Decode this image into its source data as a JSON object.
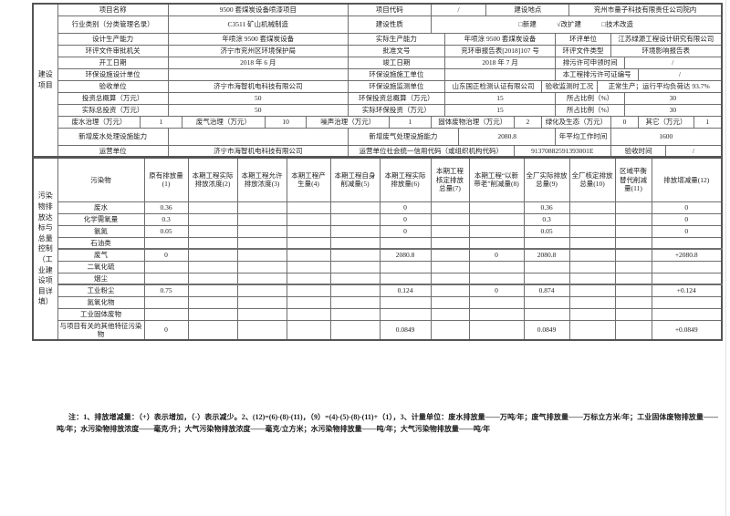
{
  "title": "附件1、建设项目工程竣工环境保护“三同时”验收登记表",
  "subheader": {
    "unit_label": "填表单位（盖章）：济宁市海智机电科技有限公司",
    "person_label": "填表人（签字）：",
    "agent_label": "项目经办人（签字）："
  },
  "side_labels": {
    "top": "建设项目",
    "bottom": "污染物排放达标与总量控制（工业建设项目详填）"
  },
  "info_table": {
    "rows": [
      {
        "h": 13,
        "cells": [
          {
            "t": "项目名称",
            "s": 8,
            "k": "label"
          },
          {
            "t": "9500 套煤炭设备喷漆项目",
            "s": 13,
            "k": "value"
          },
          {
            "t": "项目代码",
            "s": 6,
            "k": "label"
          },
          {
            "t": "/",
            "s": 4,
            "k": "value"
          },
          {
            "t": "建设地点",
            "s": 6,
            "k": "label"
          },
          {
            "t": "兖州市量子科技有限责任公司院内",
            "s": 11,
            "k": "value"
          }
        ]
      },
      {
        "h": 19,
        "cells": [
          {
            "t": "行业类别（分类管理名录）",
            "s": 8,
            "k": "label"
          },
          {
            "t": "C3511 矿山机械制造",
            "s": 13,
            "k": "value"
          },
          {
            "t": "建设性质",
            "s": 6,
            "k": "label"
          },
          {
            "t": "□新建　　　√改扩建　　　□技术改造",
            "s": 21,
            "k": "value"
          }
        ]
      },
      {
        "h": 13,
        "cells": [
          {
            "t": "设计生产能力",
            "s": 8,
            "k": "label"
          },
          {
            "t": "年喷涂 9500 套煤炭设备",
            "s": 13,
            "k": "value"
          },
          {
            "t": "实际生产能力",
            "s": 7,
            "k": "label"
          },
          {
            "t": "年喷涂 9500 套煤炭设备",
            "s": 8,
            "k": "value"
          },
          {
            "t": "环评单位",
            "s": 4,
            "k": "label"
          },
          {
            "t": "江苏绿源工程设计研究有限公司",
            "s": 8,
            "k": "value"
          }
        ]
      },
      {
        "h": 13,
        "cells": [
          {
            "t": "环评文件审批机关",
            "s": 8,
            "k": "label"
          },
          {
            "t": "济宁市兖州区环境保护局",
            "s": 13,
            "k": "value"
          },
          {
            "t": "批准文号",
            "s": 7,
            "k": "label"
          },
          {
            "t": "兖环审报告表[2018]107 号",
            "s": 8,
            "k": "value"
          },
          {
            "t": "环评文件类型",
            "s": 4,
            "k": "label"
          },
          {
            "t": "环境影响报告表",
            "s": 8,
            "k": "value"
          }
        ]
      },
      {
        "h": 13,
        "cells": [
          {
            "t": "开工日期",
            "s": 8,
            "k": "label"
          },
          {
            "t": "2018 年 6 月",
            "s": 13,
            "k": "value"
          },
          {
            "t": "竣工日期",
            "s": 7,
            "k": "label"
          },
          {
            "t": "2018 年 7 月",
            "s": 8,
            "k": "value"
          },
          {
            "t": "排污许可申领时间",
            "s": 5,
            "k": "label"
          },
          {
            "t": "/",
            "s": 7,
            "k": "value"
          }
        ]
      },
      {
        "h": 13,
        "cells": [
          {
            "t": "环保设施设计单位",
            "s": 8,
            "k": "label"
          },
          {
            "t": "",
            "s": 13,
            "k": "value"
          },
          {
            "t": "环保设施施工单位",
            "s": 7,
            "k": "label"
          },
          {
            "t": "",
            "s": 8,
            "k": "value"
          },
          {
            "t": "本工程排污许可证编号",
            "s": 6,
            "k": "label"
          },
          {
            "t": "/",
            "s": 6,
            "k": "value"
          }
        ]
      },
      {
        "h": 13,
        "cells": [
          {
            "t": "验收单位",
            "s": 8,
            "k": "label"
          },
          {
            "t": "济宁市海智机电科技有限公司",
            "s": 13,
            "k": "value"
          },
          {
            "t": "环保设施监测单位",
            "s": 7,
            "k": "label"
          },
          {
            "t": "山东国正检测认证有限公司",
            "s": 7,
            "k": "value"
          },
          {
            "t": "验收监测时工况",
            "s": 4,
            "k": "label"
          },
          {
            "t": "正常生产；运行平均负荷达 93.7%",
            "s": 9,
            "k": "value"
          }
        ]
      },
      {
        "h": 13,
        "cells": [
          {
            "t": "投资总概算（万元）",
            "s": 8,
            "k": "label"
          },
          {
            "t": "50",
            "s": 13,
            "k": "value"
          },
          {
            "t": "环保投资总概算（万元）",
            "s": 7,
            "k": "label"
          },
          {
            "t": "15",
            "s": 8,
            "k": "value"
          },
          {
            "t": "所占比例（%）",
            "s": 5,
            "k": "label"
          },
          {
            "t": "30",
            "s": 7,
            "k": "value"
          }
        ]
      },
      {
        "h": 13,
        "cells": [
          {
            "t": "实际总投资（万元）",
            "s": 8,
            "k": "label"
          },
          {
            "t": "50",
            "s": 13,
            "k": "value"
          },
          {
            "t": "实际环保投资（万元）",
            "s": 7,
            "k": "label"
          },
          {
            "t": "15",
            "s": 8,
            "k": "value"
          },
          {
            "t": "所占比例（%）",
            "s": 5,
            "k": "label"
          },
          {
            "t": "30",
            "s": 7,
            "k": "value"
          }
        ]
      },
      {
        "h": 13,
        "cells": [
          {
            "t": "废水治理（万元）",
            "s": 6,
            "k": "label"
          },
          {
            "t": "1",
            "s": 3,
            "k": "value"
          },
          {
            "t": "废气治理（万元）",
            "s": 6,
            "k": "label"
          },
          {
            "t": "10",
            "s": 3,
            "k": "value"
          },
          {
            "t": "噪声治理（万元）",
            "s": 6,
            "k": "label"
          },
          {
            "t": "1",
            "s": 3,
            "k": "value"
          },
          {
            "t": "固体废物治理（万元）",
            "s": 6,
            "k": "label"
          },
          {
            "t": "2",
            "s": 2,
            "k": "value"
          },
          {
            "t": "绿化及生态（万元）",
            "s": 5,
            "k": "label"
          },
          {
            "t": "0",
            "s": 2,
            "k": "value"
          },
          {
            "t": "其它（万元）",
            "s": 4,
            "k": "label"
          },
          {
            "t": "1",
            "s": 2,
            "k": "value"
          }
        ]
      },
      {
        "h": 19,
        "cells": [
          {
            "t": "新增废水处理设施能力",
            "s": 8,
            "k": "label"
          },
          {
            "t": "",
            "s": 13,
            "k": "value"
          },
          {
            "t": "新增废气处理设施能力",
            "s": 8,
            "k": "label"
          },
          {
            "t": "2080.8",
            "s": 7,
            "k": "value"
          },
          {
            "t": "年平均工作时间",
            "s": 4,
            "k": "label"
          },
          {
            "t": "1600",
            "s": 8,
            "k": "value"
          }
        ]
      },
      {
        "h": 13,
        "cells": [
          {
            "t": "运营单位",
            "s": 8,
            "k": "label"
          },
          {
            "t": "济宁市海智机电科技有限公司",
            "s": 13,
            "k": "value"
          },
          {
            "t": "运营单位社会统一信用代码（或组织机构代码）",
            "s": 12,
            "k": "label"
          },
          {
            "t": "91370882591393001E",
            "s": 7,
            "k": "value"
          },
          {
            "t": "验收时间",
            "s": 4,
            "k": "label"
          },
          {
            "t": "/",
            "s": 4,
            "k": "value"
          }
        ]
      }
    ]
  },
  "pollutant_table": {
    "pollutant_header": "污染物",
    "headers": [
      "原有排放量(1)",
      "本期工程实际排放浓度(2)",
      "本期工程允许排放浓度(3)",
      "本期工程产生量(4)",
      "本期工程自身削减量(5)",
      "本期工程实际排放量(6)",
      "本期工程核定排放总量(7)",
      "本期工程“以新带老”削减量(8)",
      "全厂实际排放总量(9)",
      "全厂核定排放总量(10)",
      "区域平衡替代削减量(11)",
      "排放增减量(12)"
    ],
    "rows": [
      {
        "name": "废水",
        "thick": false,
        "h": 13,
        "values": [
          "0.36",
          "",
          "",
          "",
          "",
          "0",
          "",
          "",
          "0.36",
          "",
          "",
          "0"
        ]
      },
      {
        "name": "化学需氧量",
        "thick": false,
        "h": 13,
        "values": [
          "0.3",
          "",
          "",
          "",
          "",
          "0",
          "",
          "",
          "0.3",
          "",
          "",
          "0"
        ]
      },
      {
        "name": "氨氮",
        "thick": false,
        "h": 13,
        "values": [
          "0.05",
          "",
          "",
          "",
          "",
          "0",
          "",
          "",
          "0.05",
          "",
          "",
          "0"
        ]
      },
      {
        "name": "石油类",
        "thick": false,
        "h": 13,
        "values": [
          "",
          "",
          "",
          "",
          "",
          "",
          "",
          "",
          "",
          "",
          "",
          ""
        ]
      },
      {
        "name": "废气",
        "thick": true,
        "h": 13,
        "values": [
          "0",
          "",
          "",
          "",
          "",
          "2080.8",
          "",
          "0",
          "2080.8",
          "",
          "",
          "+2080.8"
        ]
      },
      {
        "name": "二氧化硫",
        "thick": false,
        "h": 13,
        "values": [
          "",
          "",
          "",
          "",
          "",
          "",
          "",
          "",
          "",
          "",
          "",
          ""
        ]
      },
      {
        "name": "烟尘",
        "thick": false,
        "h": 13,
        "values": [
          "",
          "",
          "",
          "",
          "",
          "",
          "",
          "",
          "",
          "",
          "",
          ""
        ]
      },
      {
        "name": "工业粉尘",
        "thick": true,
        "h": 13,
        "values": [
          "0.75",
          "",
          "",
          "",
          "",
          "0.124",
          "",
          "0",
          "0.874",
          "",
          "",
          "+0.124"
        ]
      },
      {
        "name": "氮氧化物",
        "thick": false,
        "h": 13,
        "values": [
          "",
          "",
          "",
          "",
          "",
          "",
          "",
          "",
          "",
          "",
          "",
          ""
        ]
      },
      {
        "name": "工业固体废物",
        "thick": false,
        "h": 13,
        "values": [
          "",
          "",
          "",
          "",
          "",
          "",
          "",
          "",
          "",
          "",
          "",
          ""
        ]
      },
      {
        "name": "与项目有关的其他特征污染物",
        "thick": false,
        "h": 21,
        "values": [
          "0",
          "",
          "",
          "",
          "",
          "0.0849",
          "",
          "",
          "0.0849",
          "",
          "",
          "+0.0849"
        ]
      }
    ]
  },
  "footnote": "注：1、排放增减量：（+）表示增加，（-）表示减少。2、(12)=(6)-(8)-(11)，（9）=(4)-(5)-(8)-(11)+（1），3、计量单位：废水排放量——万吨/年；废气排放量——万标立方米/年；工业固体废物排放量——吨/年；水污染物排放浓度——毫克/升；大气污染物排放浓度——毫克/立方米；水污染物排放量——吨/年；大气污染物排放量——吨/年"
}
